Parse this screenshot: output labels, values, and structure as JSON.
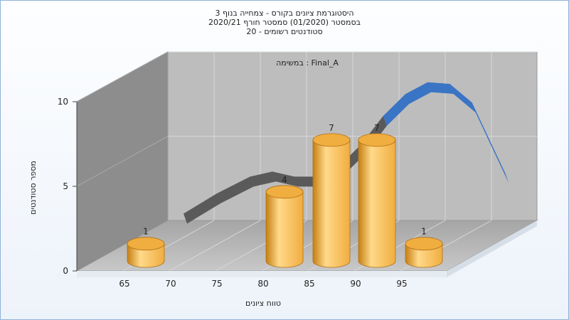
{
  "chart_data": {
    "type": "bar",
    "title_lines": [
      "היסטוגרמת ציונים בקורס - צמחייה בנוף 3",
      "בסמסטר  (01/2020)  סמסטר חורף  2020/21",
      "סטודנטים רשומים - 20"
    ],
    "task_label": "במשימה : Final_A",
    "xlabel": "טווח ציונים",
    "ylabel": "מספר סטודנטים",
    "categories": [
      "65",
      "80",
      "85",
      "90",
      "95"
    ],
    "values": [
      1,
      4,
      7,
      7,
      1
    ],
    "x_ticks": [
      "65",
      "70",
      "75",
      "80",
      "85",
      "90",
      "95"
    ],
    "y_ticks": [
      0,
      5,
      10
    ],
    "ylim": [
      0,
      10
    ],
    "grid": true,
    "curve": {
      "x": [
        70,
        73,
        76,
        78,
        80,
        82,
        84,
        86,
        88,
        90,
        92,
        94,
        96,
        98,
        99
      ],
      "y": [
        0.4,
        1.6,
        2.6,
        2.9,
        2.6,
        2.6,
        3.2,
        4.5,
        6.2,
        7.5,
        8.2,
        8.1,
        7.0,
        4.2,
        2.8
      ]
    },
    "colors": {
      "bar_light": "#ffd98a",
      "bar_mid": "#f0ad40",
      "bar_dark": "#c67f12",
      "curve_front": "#3a74c4",
      "curve_back": "#5a5a5a"
    }
  }
}
